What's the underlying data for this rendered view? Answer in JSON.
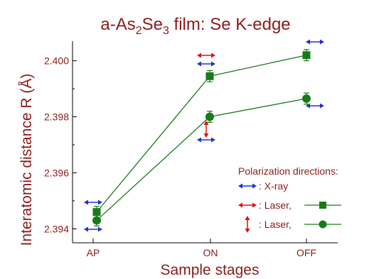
{
  "chart_data": {
    "type": "scatter",
    "title": {
      "prefix": "a-As",
      "sub1": "2",
      "mid": "Se",
      "sub2": "3",
      "suffix": " film: Se K-edge"
    },
    "xlabel": "Sample stages",
    "ylabel": "Interatomic distance R (Å)",
    "categories": [
      "AP",
      "ON",
      "OFF"
    ],
    "ylim": [
      2.3935,
      2.4007
    ],
    "yticks": [
      "2.394",
      "2.396",
      "2.398",
      "2.400"
    ],
    "ytick_values": [
      2.394,
      2.396,
      2.398,
      2.4
    ],
    "colors": {
      "title": "#8b1a1a",
      "axis_text": "#8b1a1a",
      "series": "#1a7a1a",
      "xray_arrow": "#1f2fd8",
      "laser_arrow": "#e01010"
    },
    "series": [
      {
        "marker": "square",
        "values": [
          2.3946,
          2.39945,
          2.4002
        ],
        "errors": [
          0.0002,
          0.0002,
          0.0002
        ]
      },
      {
        "marker": "circle",
        "values": [
          2.3943,
          2.398,
          2.39865
        ],
        "errors": [
          0.0002,
          0.0002,
          0.0002
        ]
      }
    ],
    "annotations": {
      "header": "Polarization directions:",
      "items": [
        {
          "arrow": "xray-horizontal",
          "label": ": X-ray"
        },
        {
          "arrow": "laser-horizontal",
          "label": ": Laser,",
          "line_marker": "square"
        },
        {
          "arrow": "laser-vertical",
          "label": ": Laser,",
          "line_marker": "circle"
        }
      ]
    }
  }
}
